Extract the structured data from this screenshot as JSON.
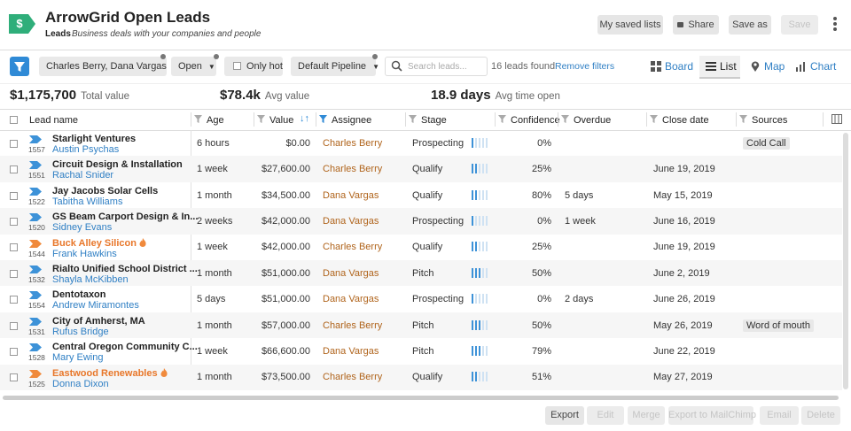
{
  "header": {
    "logo": "$",
    "title": "ArrowGrid Open Leads",
    "label": "Leads",
    "description": "Business deals with your companies and people",
    "buttons": [
      "My saved lists",
      "Share",
      "Save as",
      "Save"
    ],
    "disabled_button": 3
  },
  "toolbar": {
    "filters": [
      "Charles Berry, Dana Vargas",
      "Open"
    ],
    "hot_filter": "Only hot",
    "pipeline": "Default Pipeline",
    "search_placeholder": "Search leads...",
    "count": "16 leads found",
    "remove": "Remove filters",
    "views": [
      "Board",
      "List",
      "Map",
      "Chart"
    ],
    "active_view": 1
  },
  "summary": [
    {
      "value": "$1,175,700",
      "label": "Total value"
    },
    {
      "value": "$78.4k",
      "label": "Avg value"
    },
    {
      "value": "18.9 days",
      "label": "Avg time open"
    }
  ],
  "table": {
    "columns": [
      "Lead name",
      "Age",
      "Value",
      "Assignee",
      "Stage",
      "Confidence",
      "Overdue",
      "Close date",
      "Sources"
    ],
    "rows": [
      {
        "id": "1557",
        "company": "Starlight Ventures",
        "contact": "Austin Psychas",
        "age": "6 hours",
        "value": "$0.00",
        "assignee": "Charles Berry",
        "stage": "Prospecting",
        "stage_bars": 1,
        "confidence": "0%",
        "source": "Cold Call"
      },
      {
        "id": "1551",
        "company": "Circuit Design & Installation",
        "contact": "Rachal Snider",
        "age": "1 week",
        "value": "$27,600.00",
        "assignee": "Charles Berry",
        "stage": "Qualify",
        "stage_bars": 2,
        "confidence": "25%",
        "close_date": "June 19, 2019"
      },
      {
        "id": "1522",
        "company": "Jay Jacobs Solar Cells",
        "contact": "Tabitha Williams",
        "age": "1 month",
        "value": "$34,500.00",
        "assignee": "Dana Vargas",
        "stage": "Qualify",
        "stage_bars": 2,
        "confidence": "80%",
        "overdue": "5 days",
        "close_date": "May 15, 2019"
      },
      {
        "id": "1520",
        "company": "GS Beam Carport Design & In...",
        "contact": "Sidney Evans",
        "age": "2 weeks",
        "value": "$42,000.00",
        "assignee": "Dana Vargas",
        "stage": "Prospecting",
        "stage_bars": 1,
        "confidence": "0%",
        "overdue": "1 week",
        "close_date": "June 16, 2019"
      },
      {
        "id": "1544",
        "company": "Buck Alley Silicon",
        "hot": true,
        "contact": "Frank Hawkins",
        "age": "1 week",
        "value": "$42,000.00",
        "assignee": "Charles Berry",
        "stage": "Qualify",
        "stage_bars": 2,
        "confidence": "25%",
        "close_date": "June 19, 2019"
      },
      {
        "id": "1532",
        "company": "Rialto Unified School District ...",
        "contact": "Shayla McKibben",
        "age": "1 month",
        "value": "$51,000.00",
        "assignee": "Dana Vargas",
        "stage": "Pitch",
        "stage_bars": 3,
        "confidence": "50%",
        "close_date": "June 2, 2019"
      },
      {
        "id": "1554",
        "company": "Dentotaxon",
        "contact": "Andrew Miramontes",
        "age": "5 days",
        "value": "$51,000.00",
        "assignee": "Dana Vargas",
        "stage": "Prospecting",
        "stage_bars": 1,
        "confidence": "0%",
        "overdue": "2 days",
        "close_date": "June 26, 2019"
      },
      {
        "id": "1531",
        "company": "City of Amherst, MA",
        "contact": "Rufus Bridge",
        "age": "1 month",
        "value": "$57,000.00",
        "assignee": "Charles Berry",
        "stage": "Pitch",
        "stage_bars": 3,
        "confidence": "50%",
        "close_date": "May 26, 2019",
        "source": "Word of mouth"
      },
      {
        "id": "1528",
        "company": "Central Oregon Community C...",
        "contact": "Mary Ewing",
        "age": "1 week",
        "value": "$66,600.00",
        "assignee": "Dana Vargas",
        "stage": "Pitch",
        "stage_bars": 3,
        "confidence": "79%",
        "close_date": "June 22, 2019"
      },
      {
        "id": "1525",
        "company": "Eastwood Renewables",
        "hot": true,
        "contact": "Donna Dixon",
        "age": "1 month",
        "value": "$73,500.00",
        "assignee": "Charles Berry",
        "stage": "Qualify",
        "stage_bars": 2,
        "confidence": "51%",
        "close_date": "May 27, 2019"
      }
    ]
  },
  "footer": {
    "buttons": [
      "Export",
      "Edit",
      "Merge",
      "Export to MailChimp",
      "Email",
      "Delete"
    ],
    "enabled_count": 1
  }
}
